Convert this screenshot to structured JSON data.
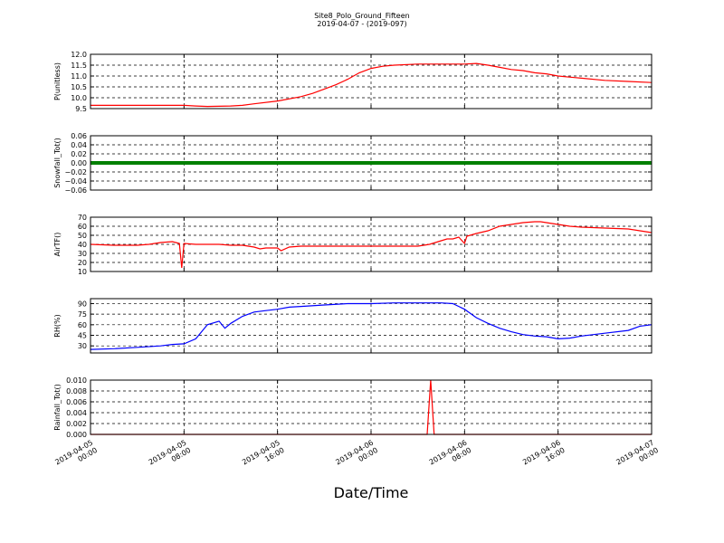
{
  "title": "Site8_Polo_Ground_Fifteen",
  "subtitle": "2019-04-07 - (2019-097)",
  "xlabel": "Date/Time",
  "x_ticks": [
    {
      "t": 0,
      "line1": "2019-04-05",
      "line2": "00:00"
    },
    {
      "t": 8,
      "line1": "2019-04-05",
      "line2": "08:00"
    },
    {
      "t": 16,
      "line1": "2019-04-05",
      "line2": "16:00"
    },
    {
      "t": 24,
      "line1": "2019-04-06",
      "line2": "00:00"
    },
    {
      "t": 32,
      "line1": "2019-04-06",
      "line2": "08:00"
    },
    {
      "t": 40,
      "line1": "2019-04-06",
      "line2": "16:00"
    },
    {
      "t": 48,
      "line1": "2019-04-07",
      "line2": "00:00"
    }
  ],
  "chart_data": [
    {
      "type": "line",
      "ylabel": "P(unitless)",
      "ylim": [
        9.5,
        12.0
      ],
      "yticks": [
        "9.5",
        "10.0",
        "10.5",
        "11.0",
        "11.5",
        "12.0"
      ],
      "color": "#ff0000",
      "grid": true,
      "x": [
        0,
        2,
        4,
        6,
        8,
        9,
        10,
        12,
        13,
        14,
        16,
        18,
        19,
        20,
        21,
        22,
        23,
        24,
        25,
        26,
        28,
        30,
        32,
        33,
        34,
        35,
        36,
        37,
        38,
        39,
        40,
        42,
        44,
        46,
        48
      ],
      "y": [
        9.65,
        9.65,
        9.65,
        9.65,
        9.65,
        9.62,
        9.6,
        9.62,
        9.65,
        9.72,
        9.85,
        10.05,
        10.2,
        10.4,
        10.6,
        10.85,
        11.15,
        11.35,
        11.45,
        11.5,
        11.55,
        11.55,
        11.55,
        11.58,
        11.5,
        11.4,
        11.3,
        11.25,
        11.15,
        11.1,
        11.0,
        10.9,
        10.8,
        10.75,
        10.7
      ]
    },
    {
      "type": "line",
      "ylabel": "Snowfall_Tot()",
      "ylim": [
        -0.06,
        0.06
      ],
      "yticks": [
        "−0.06",
        "−0.04",
        "−0.02",
        "0.00",
        "0.02",
        "0.04",
        "0.06"
      ],
      "color": "#008000",
      "grid": true,
      "x": [
        0,
        48
      ],
      "y": [
        0,
        0
      ]
    },
    {
      "type": "line",
      "ylabel": "AirTF()",
      "ylim": [
        10,
        70
      ],
      "yticks": [
        "10",
        "20",
        "30",
        "40",
        "50",
        "60",
        "70"
      ],
      "color": "#ff0000",
      "grid": true,
      "x": [
        0,
        2,
        4,
        5,
        6,
        7,
        7.6,
        7.8,
        8,
        9,
        10,
        11,
        12,
        13,
        14,
        14.5,
        15,
        16,
        16.3,
        17,
        18,
        20,
        22,
        24,
        26,
        27,
        28,
        29,
        30,
        30.5,
        31,
        31.5,
        32,
        32.2,
        33,
        34,
        35,
        36,
        37,
        38,
        38.5,
        39,
        40,
        41,
        42,
        44,
        46,
        47,
        48
      ],
      "y": [
        40,
        39,
        39,
        40,
        42,
        43,
        41,
        14,
        41,
        40,
        40,
        40,
        39,
        39,
        37,
        35,
        36,
        36,
        33,
        37,
        38,
        38,
        38,
        38,
        38,
        38,
        38,
        40,
        44,
        46,
        46,
        48,
        41,
        49,
        52,
        55,
        60,
        62,
        64,
        65,
        65,
        64,
        62,
        60,
        59,
        58,
        57,
        55,
        53
      ]
    },
    {
      "type": "line",
      "ylabel": "RH(%)",
      "ylim": [
        20,
        97
      ],
      "yticks": [
        "30",
        "45",
        "60",
        "75",
        "90"
      ],
      "color": "#0000ff",
      "grid": true,
      "x": [
        0,
        2,
        4,
        6,
        7,
        8,
        9,
        10,
        11,
        11.5,
        12,
        13,
        14,
        15,
        16,
        17,
        18,
        20,
        22,
        24,
        26,
        28,
        30,
        31,
        32,
        33,
        34,
        35,
        36,
        37,
        38,
        39,
        40,
        41,
        42,
        44,
        46,
        47,
        48
      ],
      "y": [
        25,
        26,
        28,
        30,
        32,
        33,
        40,
        60,
        65,
        55,
        62,
        72,
        78,
        80,
        82,
        85,
        86,
        88,
        90,
        90,
        91,
        91,
        91,
        90,
        82,
        70,
        62,
        55,
        50,
        46,
        44,
        43,
        40,
        41,
        44,
        48,
        52,
        58,
        60
      ]
    },
    {
      "type": "line",
      "ylabel": "Rainfall_Tot()",
      "ylim": [
        0,
        0.01
      ],
      "yticks": [
        "0.000",
        "0.002",
        "0.004",
        "0.006",
        "0.008",
        "0.010"
      ],
      "color": "#ff0000",
      "grid": true,
      "x": [
        0,
        28.8,
        29.1,
        29.4,
        48
      ],
      "y": [
        0,
        0,
        0.01,
        0,
        0
      ]
    }
  ]
}
